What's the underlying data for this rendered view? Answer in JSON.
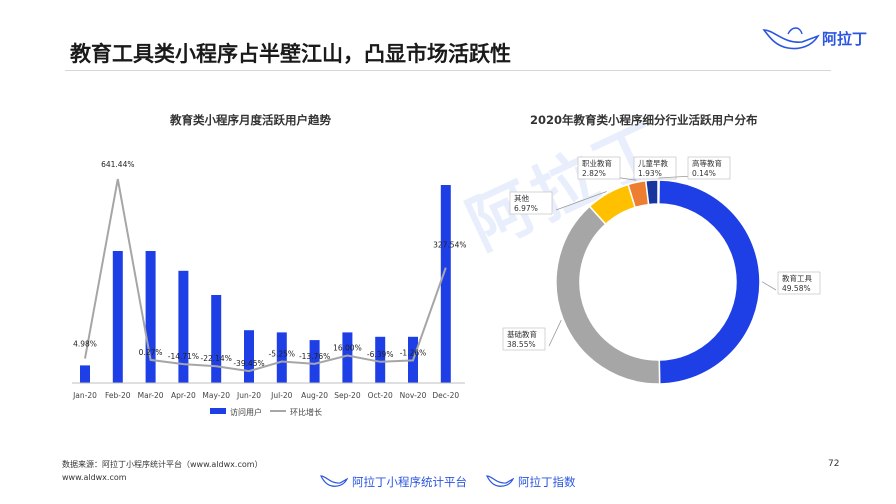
{
  "page": {
    "title": "教育工具类小程序占半壁江山，凸显市场活跃性",
    "brand": "阿拉丁",
    "watermark": "阿拉丁",
    "source_line1": "数据来源：阿拉丁小程序统计平台（www.aldwx.com）",
    "source_line2": "www.aldwx.com",
    "page_number": "72",
    "footer_brand1": "阿拉丁小程序统计平台",
    "footer_brand2": "阿拉丁指数",
    "accent_color": "#1f3fe6"
  },
  "chart_data": [
    {
      "type": "bar",
      "title": "教育类小程序月度活跃用户趋势",
      "categories": [
        "Jan-20",
        "Feb-20",
        "Mar-20",
        "Apr-20",
        "May-20",
        "Jun-20",
        "Jul-20",
        "Aug-20",
        "Sep-20",
        "Oct-20",
        "Nov-20",
        "Dec-20"
      ],
      "series": [
        {
          "name": "访问用户",
          "type": "bar",
          "color": "#1f3fe6",
          "values": [
            0.8,
            6.0,
            6.0,
            5.1,
            4.0,
            2.4,
            2.3,
            1.95,
            2.3,
            2.1,
            2.1,
            9.0
          ]
        },
        {
          "name": "环比增长",
          "type": "line",
          "color": "#a6a6a6",
          "values": [
            4.98,
            641.44,
            0.27,
            -14.71,
            -22.14,
            -39.45,
            -5.25,
            -13.76,
            16.0,
            -6.39,
            -1.26,
            327.54
          ],
          "labels": [
            "4.98%",
            "641.44%",
            "0.27%",
            "-14.71%",
            "-22.14%",
            "-39.45%",
            "-5.25%",
            "-13.76%",
            "16.00%",
            "-6.39%",
            "-1.26%",
            "327.54%"
          ]
        }
      ],
      "legend": "bottom"
    },
    {
      "type": "pie",
      "title": "2020年教育类小程序细分行业活跃用户分布",
      "slices": [
        {
          "name": "教育工具",
          "value": 49.58,
          "label": "49.58%",
          "color": "#1f3fe6"
        },
        {
          "name": "基础教育",
          "value": 38.55,
          "label": "38.55%",
          "color": "#a6a6a6"
        },
        {
          "name": "其他",
          "value": 6.97,
          "label": "6.97%",
          "color": "#ffc000"
        },
        {
          "name": "职业教育",
          "value": 2.82,
          "label": "2.82%",
          "color": "#ed7d31"
        },
        {
          "name": "儿童早教",
          "value": 1.93,
          "label": "1.93%",
          "color": "#17379e"
        },
        {
          "name": "高等教育",
          "value": 0.14,
          "label": "0.14%",
          "color": "#1f3fe6"
        }
      ]
    }
  ]
}
